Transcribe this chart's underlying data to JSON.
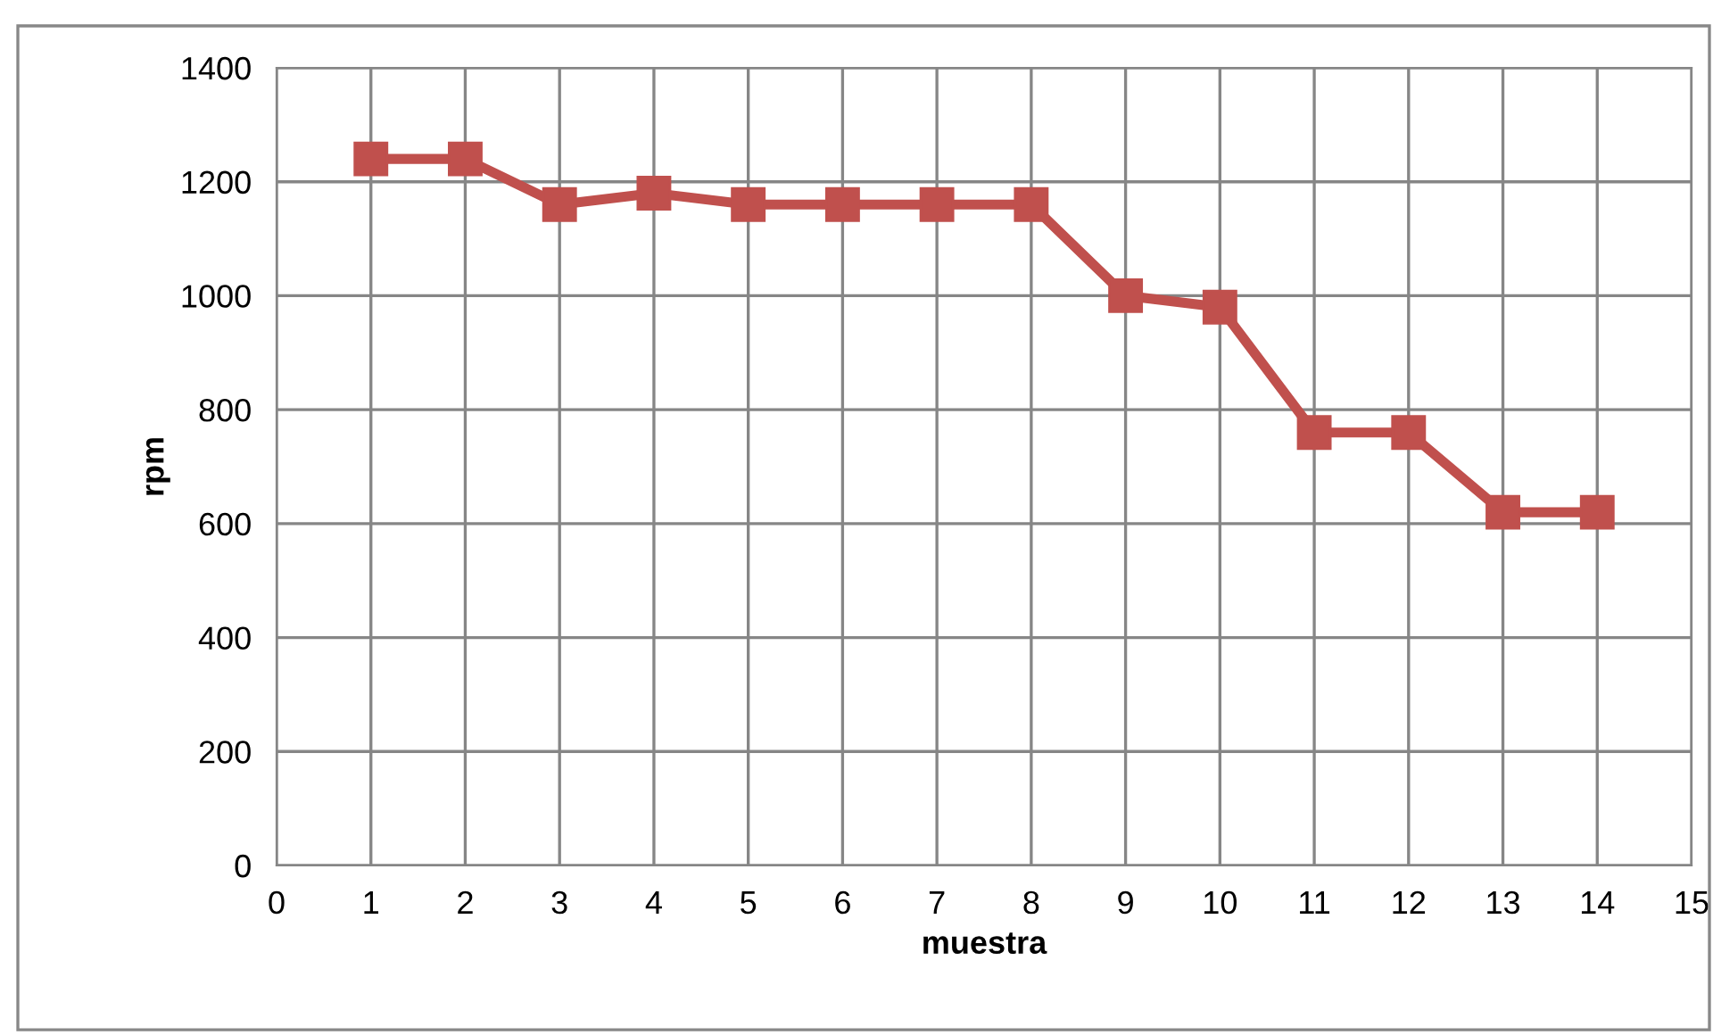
{
  "chart_data": {
    "type": "line",
    "xlabel": "muestra",
    "ylabel": "rpm",
    "x": [
      1,
      2,
      3,
      4,
      5,
      6,
      7,
      8,
      9,
      10,
      11,
      12,
      13,
      14
    ],
    "series": [
      {
        "color": "#c0504d",
        "values": [
          1240,
          1240,
          1160,
          1180,
          1160,
          1160,
          1160,
          1160,
          1000,
          980,
          760,
          760,
          620,
          620
        ]
      }
    ],
    "xlim": [
      0,
      15
    ],
    "xticks": [
      0,
      1,
      2,
      3,
      4,
      5,
      6,
      7,
      8,
      9,
      10,
      11,
      12,
      13,
      14,
      15
    ],
    "ylim": [
      0,
      1400
    ],
    "yticks": [
      0,
      200,
      400,
      600,
      800,
      1000,
      1200,
      1400
    ],
    "grid": true,
    "marker": "square",
    "line_style": "solid"
  }
}
